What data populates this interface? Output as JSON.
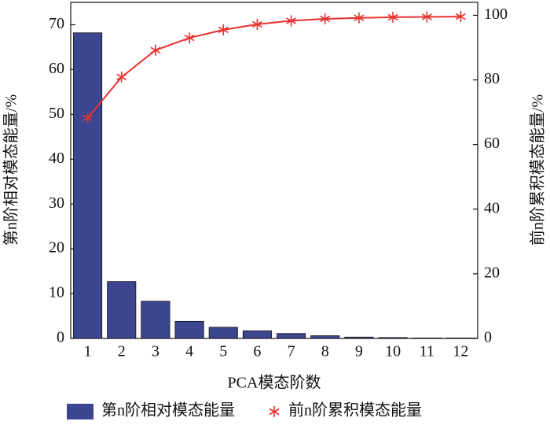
{
  "chart_data": {
    "type": "bar-line",
    "xlabel": "PCA模态阶数",
    "ylabel": "第n阶相对模态能量/%",
    "y2label": "前n阶累积模态能量/%",
    "categories": [
      "1",
      "2",
      "3",
      "4",
      "5",
      "6",
      "7",
      "8",
      "9",
      "10",
      "11",
      "12"
    ],
    "series": [
      {
        "name": "第n阶相对模态能量",
        "type": "bar",
        "color": "#3c4590",
        "values": [
          68.2,
          12.7,
          8.3,
          3.8,
          2.5,
          1.7,
          1.1,
          0.6,
          0.3,
          0.2,
          0.1,
          0.1
        ]
      },
      {
        "name": "前n阶累积模态能量",
        "type": "line",
        "axis": "y2",
        "color": "#e8312f",
        "values": [
          68.2,
          80.9,
          89.2,
          93.0,
          95.5,
          97.2,
          98.3,
          98.9,
          99.2,
          99.4,
          99.5,
          99.6
        ]
      }
    ],
    "ylim": [
      0,
      75
    ],
    "yticks": [
      0,
      10,
      20,
      30,
      40,
      50,
      60,
      70
    ],
    "y2lim": [
      0,
      104
    ],
    "y2ticks": [
      0,
      20,
      40,
      60,
      80,
      100
    ],
    "legend": "bottom"
  }
}
